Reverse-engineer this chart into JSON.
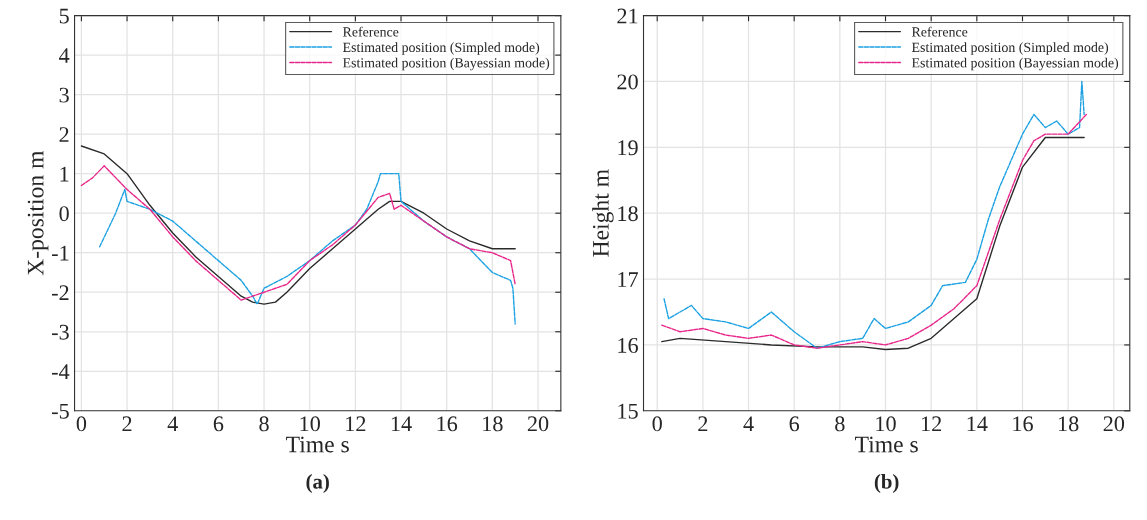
{
  "chart_data": [
    {
      "type": "line",
      "title": "(a)",
      "xlabel": "Time s",
      "ylabel": "X-position m",
      "xlim": [
        -0.3,
        21
      ],
      "ylim": [
        -5,
        5
      ],
      "xticks": [
        0,
        2,
        4,
        6,
        8,
        10,
        12,
        14,
        16,
        18,
        20
      ],
      "yticks": [
        -5,
        -4,
        -3,
        -2,
        -1,
        0,
        1,
        2,
        3,
        4,
        5
      ],
      "grid": true,
      "legend": "top right",
      "series": [
        {
          "name": "Reference",
          "color": "#2b2b2b",
          "line_style": "solid",
          "x": [
            0,
            1,
            2,
            3,
            4,
            5,
            6,
            7,
            7.5,
            8,
            8.5,
            9,
            10,
            11,
            12,
            13,
            13.5,
            14,
            15,
            16,
            17,
            18,
            19
          ],
          "values": [
            1.7,
            1.5,
            1.0,
            0.2,
            -0.5,
            -1.1,
            -1.6,
            -2.1,
            -2.25,
            -2.3,
            -2.25,
            -2.0,
            -1.4,
            -0.9,
            -0.4,
            0.1,
            0.3,
            0.3,
            0.0,
            -0.4,
            -0.7,
            -0.9,
            -0.9
          ]
        },
        {
          "name": "Estimated position (Simpled mode)",
          "color": "#1ba1e2",
          "line_style": "dashed",
          "x": [
            0.8,
            1.5,
            1.9,
            2,
            3,
            4,
            5,
            6,
            7,
            7.5,
            7.7,
            8,
            9,
            10,
            11,
            12,
            12.5,
            13,
            13.1,
            13.9,
            14,
            15,
            16,
            17,
            18,
            18.8,
            18.9,
            19
          ],
          "values": [
            -0.85,
            0,
            0.6,
            0.3,
            0.1,
            -0.2,
            -0.7,
            -1.2,
            -1.7,
            -2.1,
            -2.3,
            -1.9,
            -1.6,
            -1.2,
            -0.7,
            -0.3,
            0.1,
            0.8,
            1.0,
            1.0,
            0.3,
            -0.2,
            -0.6,
            -0.9,
            -1.5,
            -1.7,
            -1.9,
            -2.8
          ]
        },
        {
          "name": "Estimated position (Bayessian mode)",
          "color": "#e8268a",
          "line_style": "dashed",
          "x": [
            0,
            0.5,
            1,
            1.5,
            2,
            3,
            4,
            5,
            6,
            7,
            7.5,
            8,
            9,
            10,
            11,
            12,
            13,
            13.5,
            13.7,
            14,
            15,
            16,
            17,
            18,
            18.8,
            19
          ],
          "values": [
            0.7,
            0.9,
            1.2,
            0.9,
            0.6,
            0.1,
            -0.6,
            -1.2,
            -1.7,
            -2.2,
            -2.1,
            -2.0,
            -1.8,
            -1.2,
            -0.8,
            -0.3,
            0.4,
            0.5,
            0.1,
            0.2,
            -0.2,
            -0.6,
            -0.9,
            -1.0,
            -1.2,
            -1.8
          ]
        }
      ]
    },
    {
      "type": "line",
      "title": "(b)",
      "xlabel": "Time s",
      "ylabel": "Height m",
      "xlim": [
        -0.6,
        20.7
      ],
      "ylim": [
        15,
        21
      ],
      "xticks": [
        0,
        2,
        4,
        6,
        8,
        10,
        12,
        14,
        16,
        18,
        20
      ],
      "yticks": [
        15,
        16,
        17,
        18,
        19,
        20,
        21
      ],
      "grid": true,
      "legend": "top right",
      "series": [
        {
          "name": "Reference",
          "color": "#2b2b2b",
          "line_style": "solid",
          "x": [
            0.2,
            1,
            3,
            5,
            7,
            9,
            10,
            11,
            12,
            13,
            14,
            15,
            16,
            17,
            18,
            18.7
          ],
          "values": [
            16.05,
            16.1,
            16.05,
            16.0,
            15.97,
            15.97,
            15.93,
            15.95,
            16.1,
            16.4,
            16.7,
            17.8,
            18.7,
            19.15,
            19.15,
            19.15
          ]
        },
        {
          "name": "Estimated position (Simpled mode)",
          "color": "#1ba1e2",
          "line_style": "dashed",
          "x": [
            0.3,
            0.5,
            1,
            1.5,
            2,
            3,
            4,
            5,
            6,
            7,
            8,
            9,
            9.5,
            10,
            11,
            12,
            12.5,
            13.5,
            14,
            14.5,
            15,
            16,
            16.5,
            17,
            17.5,
            18,
            18.5,
            18.6,
            18.7
          ],
          "values": [
            16.7,
            16.4,
            16.5,
            16.6,
            16.4,
            16.35,
            16.25,
            16.5,
            16.2,
            15.95,
            16.05,
            16.1,
            16.4,
            16.25,
            16.35,
            16.6,
            16.9,
            16.95,
            17.3,
            17.9,
            18.4,
            19.2,
            19.5,
            19.3,
            19.4,
            19.2,
            19.3,
            20.0,
            19.5
          ]
        },
        {
          "name": "Estimated position (Bayessian mode)",
          "color": "#e8268a",
          "line_style": "dashed",
          "x": [
            0.2,
            1,
            2,
            3,
            4,
            5,
            6,
            7,
            8,
            9,
            10,
            11,
            12,
            13,
            14,
            15,
            16,
            16.5,
            17,
            18,
            18.8
          ],
          "values": [
            16.3,
            16.2,
            16.25,
            16.15,
            16.1,
            16.15,
            16.0,
            15.95,
            16.0,
            16.05,
            16.0,
            16.1,
            16.3,
            16.55,
            16.9,
            17.9,
            18.8,
            19.1,
            19.2,
            19.2,
            19.5
          ]
        }
      ]
    }
  ]
}
